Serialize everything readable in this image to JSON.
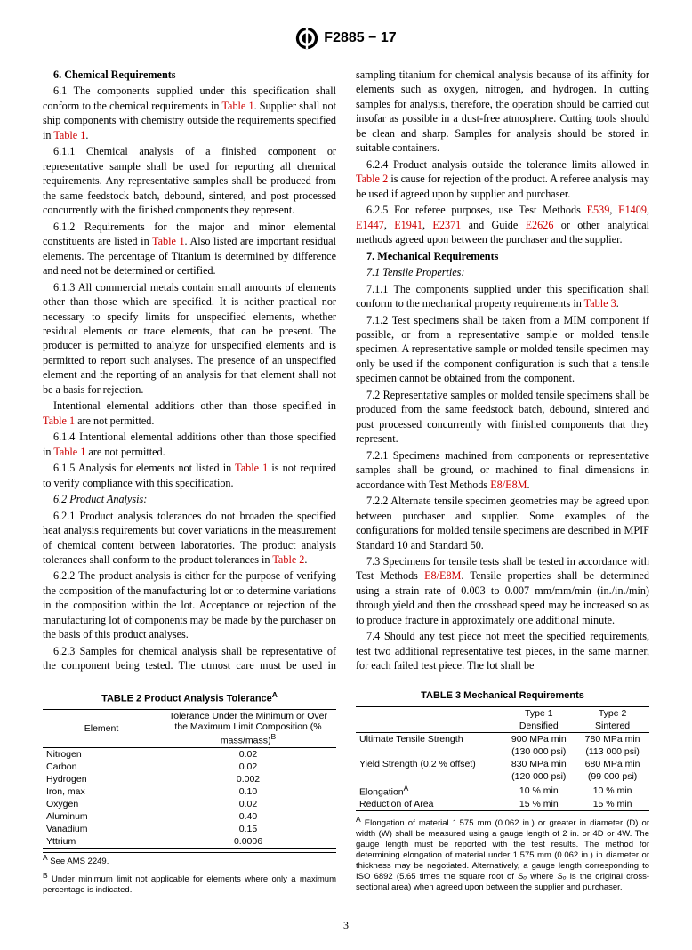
{
  "header": {
    "designation": "F2885 − 17"
  },
  "body": {
    "s6_head": "6.  Chemical Requirements",
    "p6_1": "6.1  The components supplied under this specification shall conform to the chemical requirements in ",
    "t1a": "Table 1",
    "p6_1b": ". Supplier shall not ship components with chemistry outside the requirements specified in ",
    "t1b": "Table 1",
    "p6_1c": ".",
    "p6_1_1": "6.1.1  Chemical analysis of a finished component or representative sample shall be used for reporting all chemical requirements. Any representative samples shall be produced from the same feedstock batch, debound, sintered, and post processed concurrently with the finished components they represent.",
    "p6_1_2a": "6.1.2  Requirements for the major and minor elemental constituents are listed in ",
    "t1c": "Table 1",
    "p6_1_2b": ". Also listed are important residual elements. The percentage of Titanium is determined by difference and need not be determined or certified.",
    "p6_1_3": "6.1.3  All commercial metals contain small amounts of elements other than those which are specified. It is neither practical nor necessary to specify limits for unspecified elements, whether residual elements or trace elements, that can be present. The producer is permitted to analyze for unspecified elements and is permitted to report such analyses. The presence of an unspecified element and the reporting of an analysis for that element shall not be a basis for rejection.",
    "p_intent_a": "Intentional elemental additions other than those specified in ",
    "t1d": "Table 1",
    "p_intent_b": " are not permitted.",
    "p6_1_4a": "6.1.4  Intentional elemental additions other than those specified in ",
    "t1e": "Table 1",
    "p6_1_4b": " are not permitted.",
    "p6_1_5a": "6.1.5  Analysis for elements not listed in ",
    "t1f": "Table 1",
    "p6_1_5b": " is not required to verify compliance with this specification.",
    "p6_2_head": "6.2  Product Analysis:",
    "p6_2_1a": "6.2.1  Product analysis tolerances do not broaden the specified heat analysis requirements but cover variations in the measurement of chemical content between laboratories. The product analysis tolerances shall conform to the product tolerances in ",
    "t2a": "Table 2",
    "p6_2_1b": ".",
    "p6_2_2": "6.2.2  The product analysis is either for the purpose of verifying the composition of the manufacturing lot or to determine variations in the composition within the lot. Acceptance or rejection of the manufacturing lot of components may be made by the purchaser on the basis of this product analyses.",
    "p6_2_3": "6.2.3  Samples for chemical analysis shall be representative of the component being tested. The utmost care must be used in sampling titanium for chemical analysis because of its affinity for elements such as oxygen, nitrogen, and hydrogen. In cutting samples for analysis, therefore, the operation should be carried out insofar as possible in a dust-free atmosphere. Cutting tools should be clean and sharp. Samples for analysis should be stored in suitable containers.",
    "p6_2_4a": "6.2.4  Product analysis outside the tolerance limits allowed in ",
    "t2b": "Table 2",
    "p6_2_4b": " is cause for rejection of the product. A referee analysis may be used if agreed upon by supplier and purchaser.",
    "p6_2_5a": "6.2.5  For referee purposes, use Test Methods ",
    "e539": "E539",
    "p_c1": ", ",
    "e1409": "E1409",
    "p_c2": ", ",
    "e1447": "E1447",
    "p_c3": ", ",
    "e1941": "E1941",
    "p_c4": ", ",
    "e2371": "E2371",
    "p_and": " and Guide ",
    "e2626": "E2626",
    "p6_2_5b": " or other analytical methods agreed upon between the purchaser and the supplier.",
    "s7_head": "7.  Mechanical Requirements",
    "p7_1_head": "7.1  Tensile Properties:",
    "p7_1_1a": "7.1.1  The components supplied under this specification shall conform to the mechanical property requirements in ",
    "t3a": "Table 3",
    "p7_1_1b": ".",
    "p7_1_2": "7.1.2  Test specimens shall be taken from a MIM component if possible, or from a representative sample or molded tensile specimen. A representative sample or molded tensile specimen may only be used if the component configuration is such that a tensile specimen cannot be obtained from the component.",
    "p7_2": "7.2  Representative samples or molded tensile specimens shall be produced from the same feedstock batch, debound, sintered and post processed concurrently with finished components that they represent.",
    "p7_2_1a": "7.2.1  Specimens machined from components or representative samples shall be ground, or machined to final dimensions in accordance with Test Methods ",
    "e8a": "E8/E8M",
    "p7_2_1b": ".",
    "p7_2_2": "7.2.2  Alternate tensile specimen geometries may be agreed upon between purchaser and supplier. Some examples of the configurations for molded tensile specimens are described in MPIF Standard 10 and Standard 50.",
    "p7_3a": "7.3  Specimens for tensile tests shall be tested in accordance with Test Methods ",
    "e8b": "E8/E8M",
    "p7_3b": ". Tensile properties shall be determined using a strain rate of 0.003 to 0.007 mm/mm/min (in./in./min) through yield and then the crosshead speed may be increased so as to produce fracture in approximately one additional minute.",
    "p7_4": "7.4  Should any test piece not meet the specified requirements, test two additional representative test pieces, in the same manner, for each failed test piece. The lot shall be"
  },
  "table2": {
    "title": "TABLE 2 Product Analysis Tolerance",
    "titlesup": "A",
    "col1": "Element",
    "col2": "Tolerance Under the Minimum or Over the Maximum Limit Composition (% mass/mass)",
    "col2sup": "B",
    "rows": [
      {
        "el": "Nitrogen",
        "v": "0.02"
      },
      {
        "el": "Carbon",
        "v": "0.02"
      },
      {
        "el": "Hydrogen",
        "v": "0.002"
      },
      {
        "el": "Iron, max",
        "v": "0.10"
      },
      {
        "el": "Oxygen",
        "v": "0.02"
      },
      {
        "el": "Aluminum",
        "v": "0.40"
      },
      {
        "el": "Vanadium",
        "v": "0.15"
      },
      {
        "el": "Yttrium",
        "v": "0.0006"
      }
    ],
    "fnA_sup": "A",
    "fnA": " See AMS 2249.",
    "fnB_sup": "B",
    "fnB": " Under minimum limit not applicable for elements where only a maximum percentage is indicated."
  },
  "table3": {
    "title": "TABLE 3 Mechanical Requirements",
    "h_blank": "",
    "h_t1a": "Type 1",
    "h_t1b": "Densified",
    "h_t2a": "Type 2",
    "h_t2b": "Sintered",
    "r1_l": "Ultimate Tensile Strength",
    "r1_c1a": "900 MPa min",
    "r1_c1b": "(130 000 psi)",
    "r1_c2a": "780 MPa min",
    "r1_c2b": "(113 000 psi)",
    "r2_l": "Yield Strength (0.2 % offset)",
    "r2_c1a": "830 MPa min",
    "r2_c1b": "(120 000 psi)",
    "r2_c2a": "680 MPa min",
    "r2_c2b": "(99 000 psi)",
    "r3_l": "Elongation",
    "r3_sup": "A",
    "r3_c1": "10 % min",
    "r3_c2": "10 % min",
    "r4_l": "Reduction of Area",
    "r4_c1": "15 % min",
    "r4_c2": "15 % min",
    "fnA_sup": "A",
    "fnA_pre": " Elongation of material 1.575 mm (0.062 in.) or greater in diameter (D) or width (W) shall be measured using a gauge length of 2 in. or 4D or 4W. The gauge length must be reported with the test results. The method for determining elongation of material under 1.575 mm (0.062 in.) in diameter or thickness may be negotiated. Alternatively, a gauge length corresponding to ISO 6892 (5.65 times the square root of ",
    "fnA_so": "Sₒ",
    "fnA_mid": " where ",
    "fnA_so2": "Sₒ",
    "fnA_post": " is the original cross-sectional area) when agreed upon between the supplier and purchaser."
  },
  "pagenum": "3"
}
